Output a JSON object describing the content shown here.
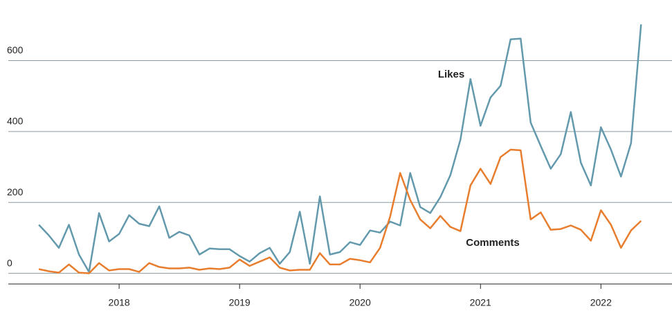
{
  "chart_data": {
    "type": "line",
    "x": [
      2017.3333,
      2017.4167,
      2017.5,
      2017.5833,
      2017.6667,
      2017.75,
      2017.8333,
      2017.9167,
      2018,
      2018.0833,
      2018.1667,
      2018.25,
      2018.3333,
      2018.4167,
      2018.5,
      2018.5833,
      2018.6667,
      2018.75,
      2018.8333,
      2018.9167,
      2019,
      2019.0833,
      2019.1667,
      2019.25,
      2019.3333,
      2019.4167,
      2019.5,
      2019.5833,
      2019.6667,
      2019.75,
      2019.8333,
      2019.9167,
      2020,
      2020.0833,
      2020.1667,
      2020.25,
      2020.3333,
      2020.4167,
      2020.5,
      2020.5833,
      2020.6667,
      2020.75,
      2020.8333,
      2020.9167,
      2021,
      2021.0833,
      2021.1667,
      2021.25,
      2021.3333,
      2021.4167,
      2021.5,
      2021.5833,
      2021.6667,
      2021.75,
      2021.8333,
      2021.9167,
      2022,
      2022.0833,
      2022.1667,
      2022.25,
      2022.3333
    ],
    "series": [
      {
        "name": "Likes",
        "color": "#6399ac",
        "values": [
          137,
          107,
          72,
          137,
          53,
          4,
          170,
          90,
          111,
          164,
          140,
          133,
          189,
          100,
          117,
          107,
          53,
          70,
          68,
          68,
          49,
          33,
          57,
          72,
          27,
          60,
          174,
          27,
          217,
          53,
          60,
          88,
          80,
          121,
          115,
          146,
          135,
          283,
          187,
          170,
          215,
          277,
          377,
          548,
          416,
          496,
          529,
          660,
          662,
          425,
          359,
          295,
          336,
          455,
          312,
          248,
          412,
          349,
          273,
          367,
          702
        ]
      },
      {
        "name": "Comments",
        "color": "#e87d2e",
        "values": [
          12,
          6,
          2,
          25,
          2,
          0,
          29,
          8,
          12,
          12,
          4,
          29,
          18,
          14,
          14,
          16,
          10,
          14,
          12,
          16,
          39,
          21,
          33,
          45,
          16,
          8,
          10,
          10,
          57,
          25,
          25,
          41,
          37,
          31,
          72,
          160,
          283,
          207,
          152,
          127,
          162,
          131,
          119,
          248,
          295,
          252,
          328,
          349,
          347,
          152,
          172,
          123,
          125,
          135,
          123,
          92,
          178,
          137,
          72,
          121,
          148
        ]
      }
    ],
    "xlim": [
      2017.08,
      2022.59
    ],
    "xticks": [
      2018,
      2019,
      2020,
      2021,
      2022
    ],
    "ylim": [
      -30,
      720
    ],
    "yticks": [
      0,
      200,
      400,
      600
    ],
    "grid": true
  }
}
